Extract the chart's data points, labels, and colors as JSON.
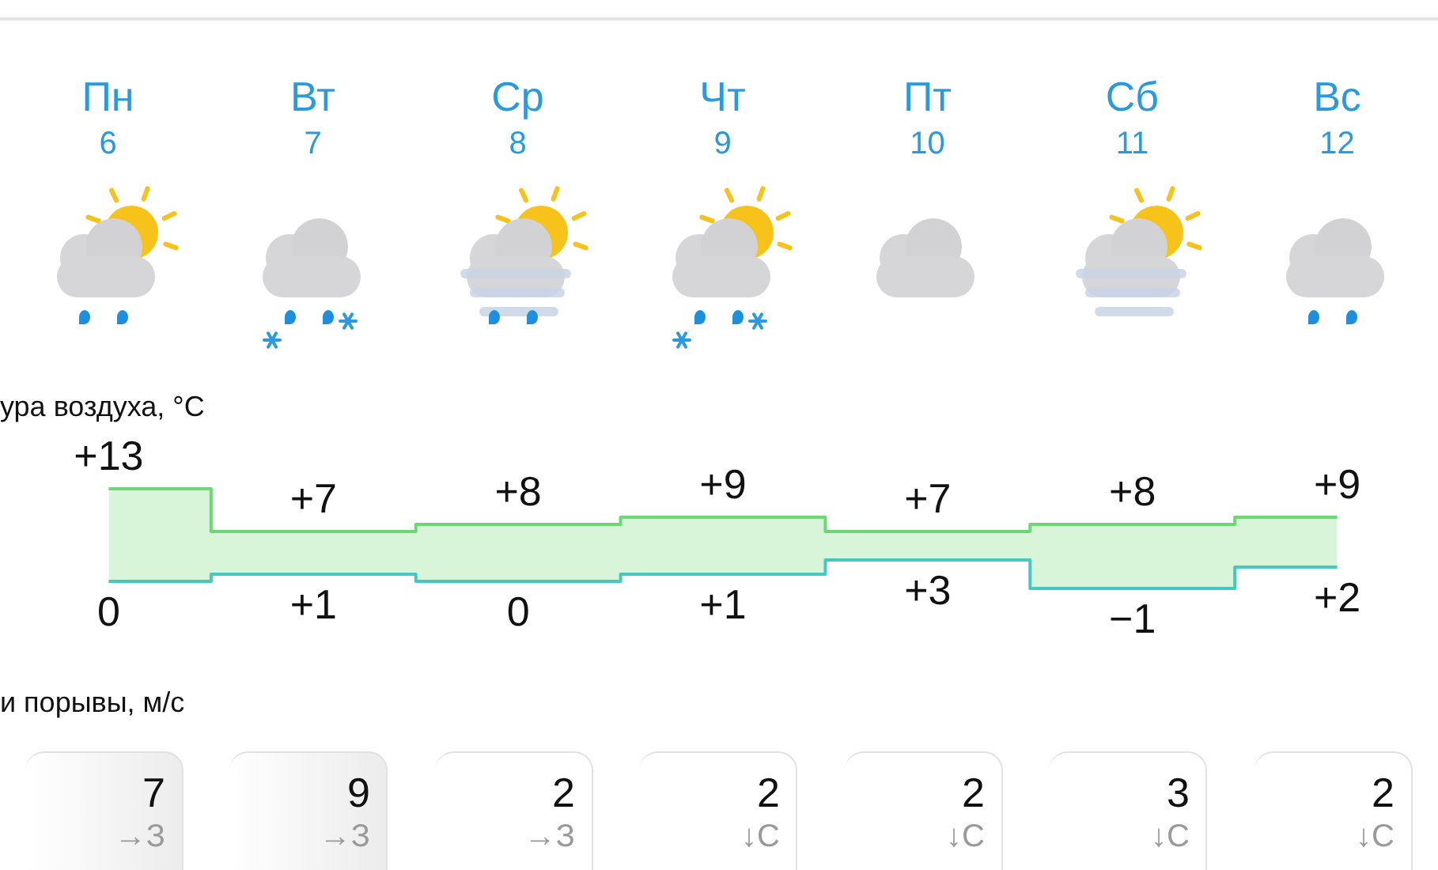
{
  "chart_data": [
    {
      "type": "step",
      "title": "ура воздуха, °C",
      "categories": [
        "Пн\n6",
        "Вт\n7",
        "Ср\n8",
        "Чт\n9",
        "Пт\n10",
        "Сб\n11",
        "Вс\n12"
      ],
      "marker": "none",
      "series": [
        {
          "color": "#6cd873",
          "values": [
            13,
            7,
            8,
            9,
            7,
            8,
            9
          ],
          "value_labels": [
            "+13",
            "+7",
            "+8",
            "+9",
            "+7",
            "+8",
            "+9"
          ],
          "lower": [
            0,
            1,
            0,
            1,
            3,
            -1,
            2
          ],
          "upper": [
            13,
            7,
            8,
            9,
            7,
            8,
            9
          ]
        },
        {
          "color": "#44c8c0",
          "values": [
            0,
            1,
            0,
            1,
            3,
            -1,
            2
          ],
          "value_labels": [
            "0",
            "+1",
            "0",
            "+1",
            "+3",
            "−1",
            "+2"
          ]
        }
      ]
    },
    {
      "type": "other",
      "title": "и порывы, м/с",
      "data_labels": true,
      "values": [
        7,
        9,
        2,
        2,
        2,
        3,
        2
      ],
      "annotations": [
        "→З",
        "→З",
        "→З",
        "↓С",
        "↓С",
        "↓С",
        "↓С"
      ]
    }
  ]
}
